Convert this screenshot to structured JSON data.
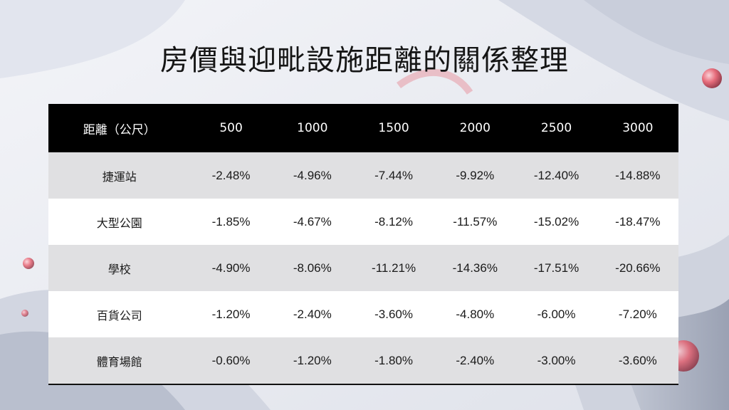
{
  "title": "房價與迎毗設施距離的關係整理",
  "table": {
    "header_label": "距離（公尺）",
    "columns": [
      "500",
      "1000",
      "1500",
      "2000",
      "2500",
      "3000"
    ],
    "rows": [
      {
        "label": "捷運站",
        "values": [
          "-2.48%",
          "-4.96%",
          "-7.44%",
          "-9.92%",
          "-12.40%",
          "-14.88%"
        ]
      },
      {
        "label": "大型公園",
        "values": [
          "-1.85%",
          "-4.67%",
          "-8.12%",
          "-11.57%",
          "-15.02%",
          "-18.47%"
        ]
      },
      {
        "label": "學校",
        "values": [
          "-4.90%",
          "-8.06%",
          "-11.21%",
          "-14.36%",
          "-17.51%",
          "-20.66%"
        ]
      },
      {
        "label": "百貨公司",
        "values": [
          "-1.20%",
          "-2.40%",
          "-3.60%",
          "-4.80%",
          "-6.00%",
          "-7.20%"
        ]
      },
      {
        "label": "體育場館",
        "values": [
          "-0.60%",
          "-1.20%",
          "-1.80%",
          "-2.40%",
          "-3.00%",
          "-3.60%"
        ]
      }
    ]
  },
  "colors": {
    "header_bg": "#000000",
    "row_odd": "#e0e0e2",
    "row_even": "#ffffff",
    "accent": "#e8606f"
  }
}
